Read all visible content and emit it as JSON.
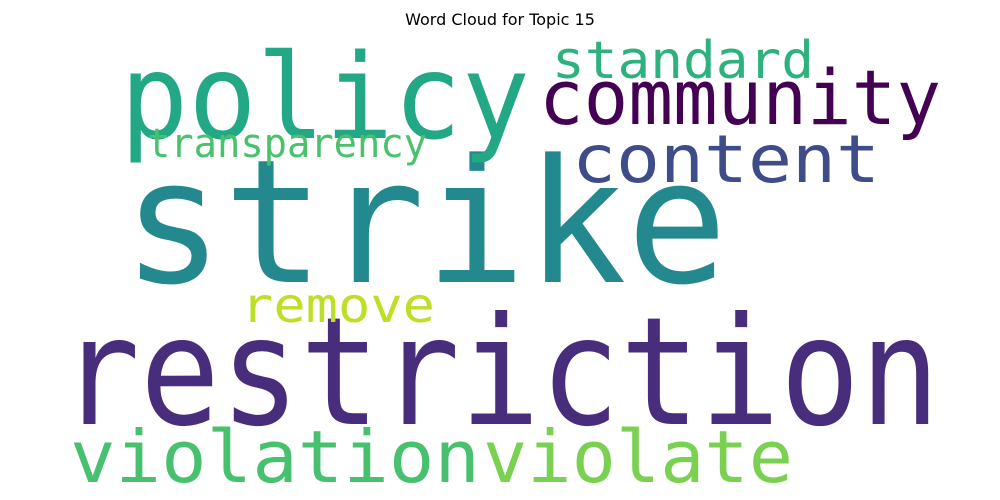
{
  "title": "Word Cloud for Topic 15",
  "words": [
    {
      "text": "strike",
      "color": "#23898e"
    },
    {
      "text": "restriction",
      "color": "#472d7b"
    },
    {
      "text": "policy",
      "color": "#22a884"
    },
    {
      "text": "community",
      "color": "#440154"
    },
    {
      "text": "standard",
      "color": "#2db27d"
    },
    {
      "text": "content",
      "color": "#3e4c8a"
    },
    {
      "text": "transparency",
      "color": "#4ac16d"
    },
    {
      "text": "remove",
      "color": "#bddf26"
    },
    {
      "text": "violation",
      "color": "#48c16e"
    },
    {
      "text": "violate",
      "color": "#7ad151"
    }
  ]
}
